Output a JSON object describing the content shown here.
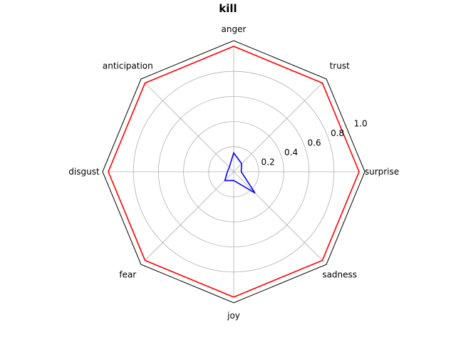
{
  "chart_data": {
    "type": "radar",
    "title": "kill",
    "categories": [
      "surprise",
      "trust",
      "anger",
      "anticipation",
      "disgust",
      "fear",
      "joy",
      "sadness"
    ],
    "rticks": [
      0.2,
      0.4,
      0.6,
      0.8,
      1.0
    ],
    "rtick_labels": [
      "0.2",
      "0.4",
      "0.6",
      "0.8",
      "1.0"
    ],
    "rlim": [
      0,
      1.0
    ],
    "grid": true,
    "series": [
      {
        "color": "#ff0000",
        "values": [
          1.0,
          1.0,
          1.0,
          1.0,
          1.0,
          1.0,
          1.0,
          1.0
        ]
      },
      {
        "color": "#0000ff",
        "values": [
          0.06,
          0.09,
          0.15,
          0.05,
          0.05,
          0.1,
          0.07,
          0.24
        ]
      }
    ]
  }
}
